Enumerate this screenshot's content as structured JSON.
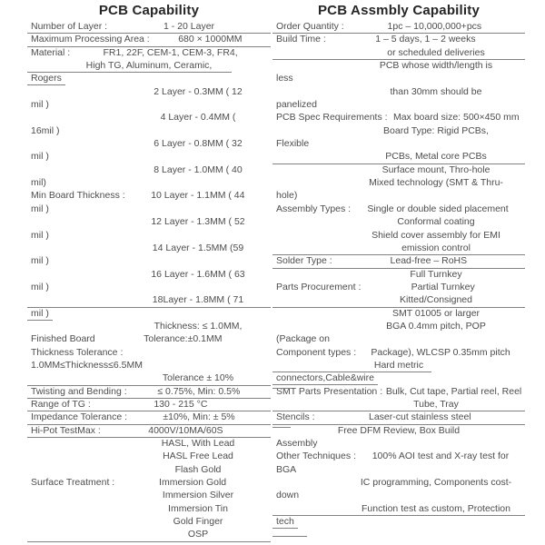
{
  "colors": {
    "background": "#ffffff",
    "text": "#4d4d4d",
    "title": "#262626",
    "line": "#828282"
  },
  "left_table": {
    "title": "PCB Capability",
    "rows": [
      {
        "l": "Number of Layer :",
        "v": "1 - 20 Layer",
        "u": "full"
      },
      {
        "l": "Maximum Processing Area :",
        "v": "680 × 1000MM",
        "u": "full"
      },
      {
        "l": "Material :",
        "v": "FR1, 22F, CEM-1, CEM-3, FR4,"
      },
      {
        "v": "High TG, Aluminum, Ceramic,",
        "u": "p84"
      },
      {
        "l": "Rogers",
        "u": "label"
      },
      {
        "v": "2 Layer - 0.3MM ( 12"
      },
      {
        "l": "mil )"
      },
      {
        "v": "4 Layer - 0.4MM ("
      },
      {
        "l": "16mil )"
      },
      {
        "v": "6 Layer - 0.8MM ( 32"
      },
      {
        "l": "mil )"
      },
      {
        "v": "8 Layer - 1.0MM ( 40"
      },
      {
        "l": "mil)"
      },
      {
        "l": "Min Board Thickness :",
        "v": "10 Layer - 1.1MM ( 44"
      },
      {
        "l": "mil )"
      },
      {
        "v": "12 Layer - 1.3MM ( 52"
      },
      {
        "l": "mil )"
      },
      {
        "v": "14 Layer - 1.5MM (59"
      },
      {
        "l": "mil )"
      },
      {
        "v": "16 Layer - 1.6MM ( 63"
      },
      {
        "l": "mil )"
      },
      {
        "v": "18Layer - 1.8MM ( 71",
        "u": "full"
      },
      {
        "l": "mil )",
        "u": "label"
      },
      {
        "v": "Thickness: ≤ 1.0MM,"
      },
      {
        "l": "Finished Board",
        "v": "Tolerance:±0.1MM"
      },
      {
        "l": "Thickness Tolerance :"
      },
      {
        "l": "1.0MM≤Thickness≤6.5MM"
      },
      {
        "v": "Tolerance ± 10%",
        "u": "full"
      },
      {
        "l": "Twisting and Bending :",
        "v": "≤ 0.75%, Min: 0.5%",
        "u": "full"
      },
      {
        "l": "Range of TG :",
        "v": "130 - 215 °C",
        "u": "full"
      },
      {
        "l": "Impedance Tolerance :",
        "v": "±10%, Min: ± 5%",
        "u": "full"
      },
      {
        "l": "Hi-Pot TestMax :",
        "v": "4000V/10MA/60S",
        "u": "full"
      },
      {
        "v": "HASL, With Lead"
      },
      {
        "v": "HASL Free Lead"
      },
      {
        "v": "Flash Gold"
      },
      {
        "l": "Surface Treatment :",
        "v": "Immersion Gold"
      },
      {
        "v": "Immersion Silver"
      },
      {
        "v": "Immersion Tin"
      },
      {
        "v": "Gold Finger"
      },
      {
        "v": "OSP",
        "u": "full"
      }
    ]
  },
  "right_table": {
    "title": "PCB Assmbly Capability",
    "rows": [
      {
        "l": "Order Quantity :",
        "v": "1pc – 10,000,000+pcs",
        "u": "full"
      },
      {
        "l": "Build Time :",
        "v": "1 – 5 days, 1 – 2 weeks"
      },
      {
        "v": "or scheduled deliveries",
        "u": "full"
      },
      {
        "v": "PCB whose width/length is"
      },
      {
        "l": "less"
      },
      {
        "v": "than 30mm should be"
      },
      {
        "l": "panelized"
      },
      {
        "l": "PCB Spec Requirements :",
        "v": "Max board size: 500×450 mm"
      },
      {
        "v": "Board Type: Rigid PCBs,"
      },
      {
        "l": "Flexible"
      },
      {
        "v": "PCBs, Metal core PCBs",
        "u": "full"
      },
      {
        "v": "Surface mount, Thro-hole"
      },
      {
        "v": "Mixed technology (SMT & Thru-"
      },
      {
        "l": "hole)"
      },
      {
        "l": "Assembly Types :",
        "v": "Single or double sided placement"
      },
      {
        "v": "Conformal coating"
      },
      {
        "v": "Shield cover assembly for EMI"
      },
      {
        "v": "emission control",
        "u": "full"
      },
      {
        "l": "Solder Type :",
        "v": "Lead-free – RoHS",
        "u": "full"
      },
      {
        "v": "Full Turnkey"
      },
      {
        "l": "Parts Procurement :",
        "v": "Partial Turnkey"
      },
      {
        "v": "Kitted/Consigned",
        "u": "full"
      },
      {
        "v": "SMT 01005 or larger"
      },
      {
        "v": "BGA 0.4mm pitch, POP"
      },
      {
        "l": "(Package on"
      },
      {
        "l": "Component types :",
        "v": "Package),  WLCSP 0.35mm pitch"
      },
      {
        "v": "Hard metric",
        "u": "p63"
      },
      {
        "l": "connectors,Cable&wire",
        "u": "label"
      },
      {
        "l": "SMT Parts Presentation :",
        "v": "Bulk, Cut tape, Partial reel, Reel",
        "t": true
      },
      {
        "v": "Tube, Tray",
        "u": "full"
      },
      {
        "l": "Stencils :",
        "v": "Laser-cut stainless steel",
        "u": "full"
      },
      {
        "v": "Free DFM Review, Box Build",
        "t": true
      },
      {
        "l": "Assembly"
      },
      {
        "l": "Other Techniques :",
        "v": "100% AOI test and X-ray test for"
      },
      {
        "l": "BGA"
      },
      {
        "v": "IC programming, Components cost-"
      },
      {
        "l": "down"
      },
      {
        "v": "Function test as custom, Protection",
        "u": "full"
      },
      {
        "l": "tech",
        "u": "label"
      },
      {
        "t": "mid"
      }
    ]
  }
}
